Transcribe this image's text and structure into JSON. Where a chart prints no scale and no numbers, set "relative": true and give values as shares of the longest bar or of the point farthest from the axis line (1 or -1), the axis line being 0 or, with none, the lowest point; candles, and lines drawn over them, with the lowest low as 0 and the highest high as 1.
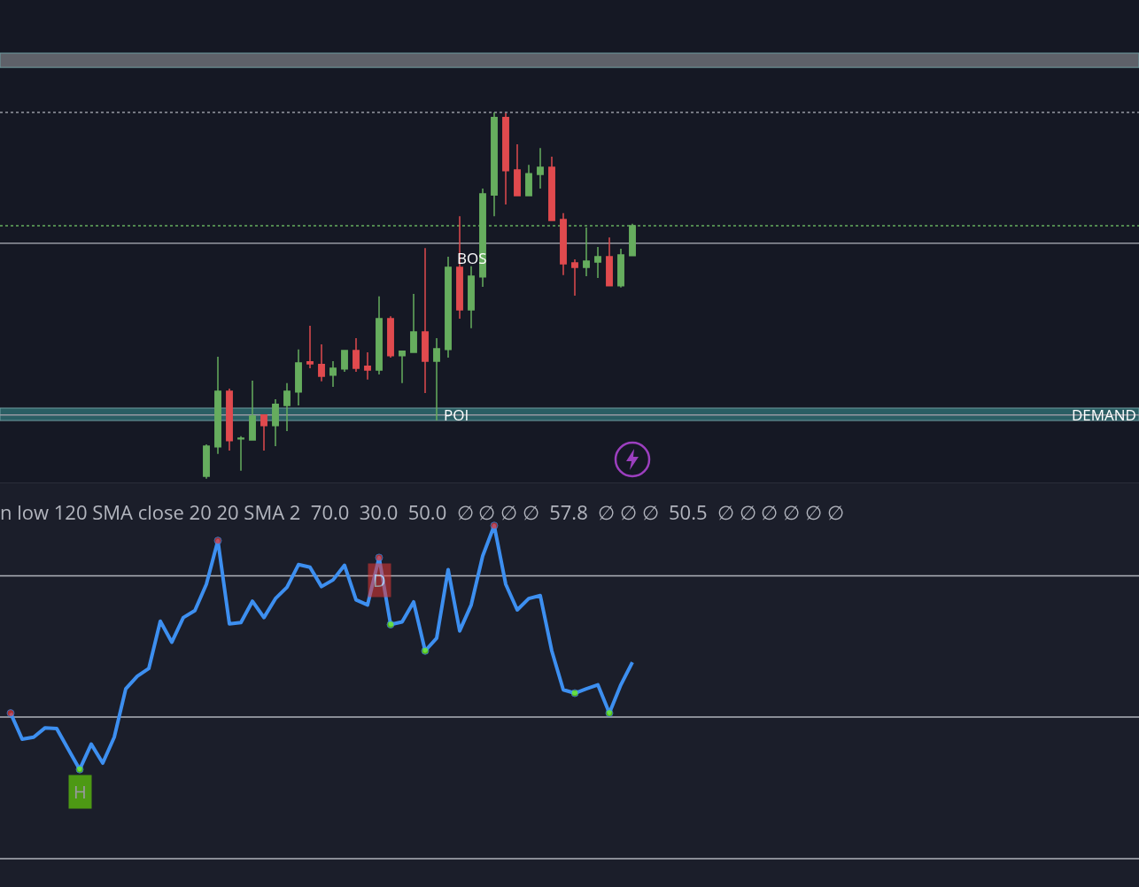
{
  "chart_data": [
    {
      "type": "candlestick",
      "relative": true,
      "categories": [
        null,
        null,
        null,
        null,
        null,
        null,
        null,
        null,
        null,
        null,
        null,
        null,
        null,
        null,
        null,
        null,
        null,
        null,
        null,
        null,
        null,
        null,
        null,
        null,
        null,
        null,
        null,
        null,
        null,
        null,
        null,
        null,
        null,
        null,
        null,
        null,
        null,
        null
      ],
      "ohlc": [
        [
          0.007,
          0.094,
          0,
          0.089
        ],
        [
          0.087,
          0.333,
          0.068,
          0.239
        ],
        [
          0.239,
          0.246,
          0.077,
          0.104
        ],
        [
          0.109,
          0.116,
          0.022,
          0.111
        ],
        [
          0.106,
          0.268,
          0.106,
          0.171
        ],
        [
          0.174,
          0.174,
          0.077,
          0.145
        ],
        [
          0.145,
          0.217,
          0.089,
          0.203
        ],
        [
          0.2,
          0.261,
          0.13,
          0.239
        ],
        [
          0.237,
          0.353,
          0.2,
          0.316
        ],
        [
          0.319,
          0.418,
          0.302,
          0.314
        ],
        [
          0.312,
          0.367,
          0.266,
          0.28
        ],
        [
          0.283,
          0.321,
          0.251,
          0.302
        ],
        [
          0.3,
          0.35,
          0.292,
          0.35
        ],
        [
          0.35,
          0.384,
          0.292,
          0.302
        ],
        [
          0.307,
          0.345,
          0.271,
          0.297
        ],
        [
          0.297,
          0.498,
          0.285,
          0.437
        ],
        [
          0.437,
          0.444,
          0.331,
          0.336
        ],
        [
          0.336,
          0.348,
          0.261,
          0.348
        ],
        [
          0.345,
          0.505,
          0.345,
          0.401
        ],
        [
          0.401,
          0.63,
          0.234,
          0.321
        ],
        [
          0.321,
          0.384,
          0.159,
          0.355
        ],
        [
          0.353,
          0.606,
          0.331,
          0.577
        ],
        [
          0.577,
          0.717,
          0.437,
          0.461
        ],
        [
          0.461,
          0.58,
          0.411,
          0.553
        ],
        [
          0.551,
          0.792,
          0.524,
          0.778
        ],
        [
          0.775,
          1,
          0.717,
          0.986
        ],
        [
          0.986,
          0.998,
          0.749,
          0.841
        ],
        [
          0.843,
          0.913,
          0.771,
          0.773
        ],
        [
          0.773,
          0.857,
          0.773,
          0.833
        ],
        [
          0.831,
          0.903,
          0.792,
          0.85
        ],
        [
          0.85,
          0.879,
          0.705,
          0.705
        ],
        [
          0.708,
          0.725,
          0.556,
          0.587
        ],
        [
          0.589,
          0.599,
          0.5,
          0.577
        ],
        [
          0.577,
          0.686,
          0.553,
          0.594
        ],
        [
          0.592,
          0.633,
          0.548,
          0.606
        ],
        [
          0.606,
          0.659,
          0.527,
          0.527
        ],
        [
          0.527,
          0.628,
          0.522,
          0.611
        ],
        [
          0.609,
          0.696,
          0.609,
          0.691
        ]
      ],
      "colors": [
        "#66ad5e",
        "#66ad5e",
        "#e04a4e",
        "#66ad5e",
        "#66ad5e",
        "#e04a4e",
        "#66ad5e",
        "#66ad5e",
        "#66ad5e",
        "#e04a4e",
        "#e04a4e",
        "#66ad5e",
        "#66ad5e",
        "#e04a4e",
        "#e04a4e",
        "#66ad5e",
        "#e04a4e",
        "#66ad5e",
        "#66ad5e",
        "#e04a4e",
        "#66ad5e",
        "#66ad5e",
        "#e04a4e",
        "#66ad5e",
        "#66ad5e",
        "#66ad5e",
        "#e04a4e",
        "#e04a4e",
        "#66ad5e",
        "#66ad5e",
        "#e04a4e",
        "#e04a4e",
        "#e04a4e",
        "#66ad5e",
        "#66ad5e",
        "#e04a4e",
        "#66ad5e",
        "#66ad5e"
      ],
      "ref_lines": [
        {
          "axis": "y",
          "value": 1.0,
          "color": "#9598a1",
          "line_style": "dotted"
        },
        {
          "axis": "y",
          "value": 0.691,
          "color": "#66ad5e",
          "line_style": "dotted"
        },
        {
          "axis": "y",
          "value": 0.643,
          "label": "BOS",
          "color": "#9598a1"
        },
        {
          "axis": "y",
          "value": 0.174,
          "color": "#9598a1"
        }
      ],
      "bands": [
        {
          "axis": "y",
          "from": 1.123,
          "to": 1.162,
          "color": "#6b6e76"
        },
        {
          "axis": "y",
          "from": 0.159,
          "to": 0.193,
          "label": "POI",
          "color": "#2e6b70"
        }
      ],
      "annotations": [
        {
          "text": "DEMAND",
          "y": 0.176
        }
      ]
    },
    {
      "type": "line",
      "title": "n low 120 SMA close 20 20 SMA 2  70.0  30.0  50.0  ∅ ∅ ∅ ∅  57.8  ∅ ∅ ∅  50.5  ∅ ∅ ∅ ∅ ∅ ∅",
      "categories": [
        null,
        null,
        null,
        null,
        null,
        null,
        null,
        null,
        null,
        null,
        null,
        null,
        null,
        null,
        null,
        null,
        null,
        null,
        null,
        null,
        null,
        null,
        null,
        null,
        null,
        null,
        null,
        null,
        null,
        null,
        null,
        null,
        null,
        null,
        null,
        null,
        null,
        null,
        null,
        null,
        null,
        null,
        null,
        null,
        null,
        null,
        null,
        null,
        null,
        null,
        null,
        null,
        null,
        null,
        null
      ],
      "relative": true,
      "series": [
        {
          "color": "#3d8ff0",
          "values": [
            0.437,
            0.359,
            0.365,
            0.393,
            0.391,
            0.329,
            0.268,
            0.344,
            0.287,
            0.365,
            0.51,
            0.548,
            0.571,
            0.713,
            0.65,
            0.724,
            0.745,
            0.824,
            0.955,
            0.705,
            0.709,
            0.773,
            0.724,
            0.781,
            0.815,
            0.883,
            0.875,
            0.817,
            0.837,
            0.881,
            0.777,
            0.762,
            0.904,
            0.703,
            0.711,
            0.771,
            0.624,
            0.662,
            0.868,
            0.684,
            0.762,
            0.909,
            1,
            0.824,
            0.747,
            0.781,
            0.79,
            0.624,
            0.507,
            0.497,
            0.51,
            0.522,
            0.437,
            0.522,
            0.59
          ],
          "colors": [
            "#e53935",
            null,
            null,
            null,
            null,
            null,
            "#76ff03",
            null,
            null,
            null,
            null,
            null,
            null,
            null,
            null,
            null,
            null,
            null,
            "#e53935",
            null,
            null,
            null,
            null,
            null,
            null,
            null,
            null,
            null,
            null,
            null,
            null,
            null,
            "#e53935",
            "#76ff03",
            null,
            null,
            "#76ff03",
            null,
            null,
            null,
            null,
            null,
            "#e53935",
            null,
            null,
            null,
            null,
            null,
            null,
            "#76ff03",
            null,
            null,
            "#76ff03",
            null,
            null
          ]
        }
      ],
      "ref_lines": [
        {
          "axis": "y",
          "value": 0.849,
          "color": "#b0b3bb"
        },
        {
          "axis": "y",
          "value": 0.425,
          "color": "#b0b3bb"
        },
        {
          "axis": "y",
          "value": 0,
          "color": "#b0b3bb"
        }
      ],
      "annotations": [
        {
          "text": "H",
          "y": 0.268
        },
        {
          "text": "D",
          "y": 0.904
        }
      ]
    }
  ]
}
